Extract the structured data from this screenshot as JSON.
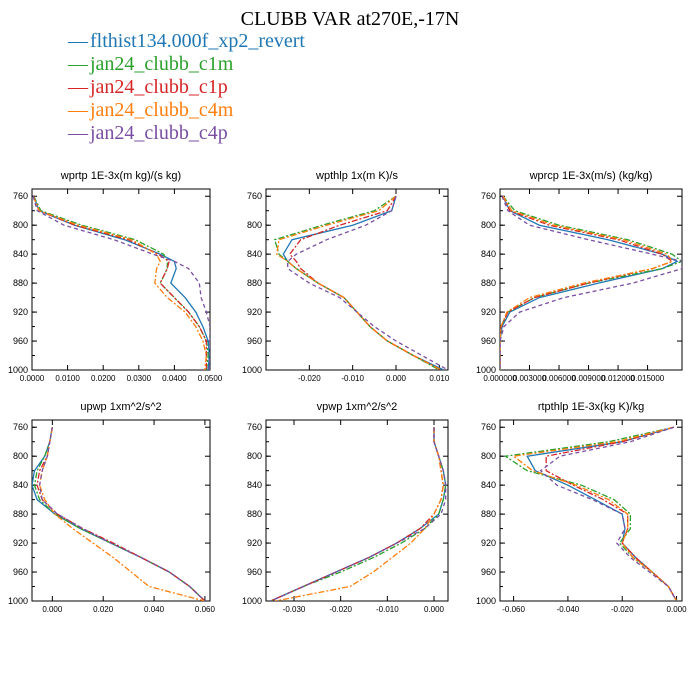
{
  "title": "CLUBB VAR at270E,-17N",
  "legend": [
    {
      "name": "flthist134.000f_xp2_revert",
      "color": "#1f77b4",
      "dash": ""
    },
    {
      "name": "jan24_clubb_c1m",
      "color": "#2ca02c",
      "dash": "6,2,2,2"
    },
    {
      "name": "jan24_clubb_c1p",
      "color": "#d62728",
      "dash": "6,2,2,2"
    },
    {
      "name": "jan24_clubb_c4m",
      "color": "#ff7f0e",
      "dash": "6,2,2,2"
    },
    {
      "name": "jan24_clubb_c4p",
      "color": "#7a4fa3",
      "dash": "4,3"
    }
  ],
  "chart_data": [
    {
      "type": "line",
      "title": "wprtp  1E-3x(m kg)/(s kg)",
      "xlim": [
        0,
        0.05
      ],
      "ylim": [
        1000,
        750
      ],
      "xticks": [
        "0.0000",
        "0.0100",
        "0.0200",
        "0.0300",
        "0.0400",
        "0.0500"
      ],
      "yticks": [
        "760",
        "800",
        "840",
        "880",
        "920",
        "960",
        "1000"
      ],
      "y": [
        760,
        780,
        800,
        820,
        840,
        850,
        860,
        880,
        900,
        920,
        940,
        960,
        980,
        1000
      ],
      "series": [
        {
          "name": "flthist134.000f_xp2_revert",
          "values": [
            0.0005,
            0.002,
            0.012,
            0.026,
            0.036,
            0.04,
            0.0405,
            0.039,
            0.043,
            0.046,
            0.048,
            0.0495,
            0.0498,
            0.0495
          ]
        },
        {
          "name": "jan24_clubb_c1m",
          "values": [
            0.0005,
            0.0025,
            0.014,
            0.029,
            0.037,
            0.038,
            0.038,
            0.036,
            0.04,
            0.044,
            0.047,
            0.049,
            0.0495,
            0.049
          ]
        },
        {
          "name": "jan24_clubb_c1p",
          "values": [
            0.0004,
            0.002,
            0.012,
            0.027,
            0.0355,
            0.0385,
            0.038,
            0.036,
            0.04,
            0.044,
            0.047,
            0.049,
            0.049,
            0.049
          ]
        },
        {
          "name": "jan24_clubb_c4m",
          "values": [
            0.0004,
            0.002,
            0.013,
            0.028,
            0.035,
            0.036,
            0.035,
            0.0345,
            0.038,
            0.043,
            0.046,
            0.048,
            0.049,
            0.0485
          ]
        },
        {
          "name": "jan24_clubb_c4p",
          "values": [
            0.0003,
            0.0015,
            0.009,
            0.023,
            0.034,
            0.04,
            0.044,
            0.047,
            0.0475,
            0.049,
            0.05,
            0.05,
            0.05,
            0.0498
          ]
        }
      ]
    },
    {
      "type": "line",
      "title": "wpthlp  1x(m K)/s",
      "xlim": [
        -0.03,
        0.012
      ],
      "ylim": [
        1000,
        750
      ],
      "xticks": [
        "-0.020",
        "-0.010",
        "0.000",
        "0.010"
      ],
      "yticks": [
        "760",
        "800",
        "840",
        "880",
        "920",
        "960",
        "1000"
      ],
      "y": [
        760,
        780,
        800,
        820,
        840,
        850,
        860,
        880,
        900,
        920,
        940,
        960,
        980,
        1000
      ],
      "series": [
        {
          "name": "flthist134.000f_xp2_revert",
          "values": [
            0,
            -0.001,
            -0.01,
            -0.024,
            -0.026,
            -0.025,
            -0.023,
            -0.018,
            -0.012,
            -0.009,
            -0.006,
            -0.002,
            0.004,
            0.011
          ]
        },
        {
          "name": "jan24_clubb_c1m",
          "values": [
            0,
            -0.005,
            -0.017,
            -0.028,
            -0.027,
            -0.025,
            -0.023,
            -0.018,
            -0.012,
            -0.009,
            -0.006,
            -0.002,
            0.004,
            0.01
          ]
        },
        {
          "name": "jan24_clubb_c1p",
          "values": [
            0,
            -0.002,
            -0.013,
            -0.022,
            -0.0245,
            -0.023,
            -0.022,
            -0.018,
            -0.012,
            -0.009,
            -0.006,
            -0.002,
            0.004,
            0.0105
          ]
        },
        {
          "name": "jan24_clubb_c4m",
          "values": [
            0,
            -0.004,
            -0.016,
            -0.027,
            -0.0275,
            -0.025,
            -0.023,
            -0.018,
            -0.012,
            -0.009,
            -0.006,
            -0.002,
            0.004,
            0.0105
          ]
        },
        {
          "name": "jan24_clubb_c4p",
          "values": [
            0,
            -0.001,
            -0.007,
            -0.016,
            -0.023,
            -0.025,
            -0.025,
            -0.02,
            -0.013,
            -0.009,
            -0.005,
            0,
            0.006,
            0.012
          ]
        }
      ]
    },
    {
      "type": "line",
      "title": "wprcp  1E-3x(m/s) (kg/kg)",
      "xlim": [
        0,
        0.0185
      ],
      "ylim": [
        1000,
        750
      ],
      "xticks": [
        "0.000000",
        "0.003000",
        "0.006000",
        "0.009000",
        "0.012000",
        "0.015000"
      ],
      "yticks": [
        "760",
        "800",
        "840",
        "880",
        "920",
        "960",
        "1000"
      ],
      "y": [
        760,
        780,
        800,
        820,
        840,
        850,
        860,
        880,
        900,
        920,
        940,
        960,
        980,
        1000
      ],
      "series": [
        {
          "name": "flthist134.000f_xp2_revert",
          "values": [
            0.0003,
            0.001,
            0.004,
            0.011,
            0.0165,
            0.018,
            0.0165,
            0.01,
            0.004,
            0.001,
            0.0002,
            0,
            0,
            0
          ]
        },
        {
          "name": "jan24_clubb_c1m",
          "values": [
            0.0003,
            0.0015,
            0.006,
            0.013,
            0.0175,
            0.0185,
            0.0165,
            0.009,
            0.0035,
            0.0008,
            0.0001,
            0,
            0,
            0
          ]
        },
        {
          "name": "jan24_clubb_c1p",
          "values": [
            0.0003,
            0.001,
            0.005,
            0.012,
            0.0165,
            0.0175,
            0.0155,
            0.009,
            0.0035,
            0.0008,
            0.0001,
            0,
            0,
            0
          ]
        },
        {
          "name": "jan24_clubb_c4m",
          "values": [
            0.0003,
            0.0012,
            0.0055,
            0.0125,
            0.017,
            0.0175,
            0.0155,
            0.0085,
            0.003,
            0.0007,
            0.0001,
            0,
            0,
            0
          ]
        },
        {
          "name": "jan24_clubb_c4p",
          "values": [
            0.0002,
            0.0008,
            0.003,
            0.009,
            0.0155,
            0.0185,
            0.0185,
            0.0135,
            0.0065,
            0.002,
            0.0004,
            0,
            0,
            0
          ]
        }
      ]
    },
    {
      "type": "line",
      "title": "upwp   1xm^2/s^2",
      "xlim": [
        -0.008,
        0.062
      ],
      "ylim": [
        1000,
        750
      ],
      "xticks": [
        "0.000",
        "0.020",
        "0.040",
        "0.060"
      ],
      "yticks": [
        "760",
        "800",
        "840",
        "880",
        "920",
        "960",
        "1000"
      ],
      "y": [
        760,
        780,
        800,
        820,
        840,
        860,
        880,
        900,
        920,
        940,
        960,
        980,
        1000
      ],
      "series": [
        {
          "name": "flthist134.000f_xp2_revert",
          "values": [
            0,
            -0.001,
            -0.003,
            -0.007,
            -0.008,
            -0.006,
            0.001,
            0.011,
            0.023,
            0.035,
            0.046,
            0.054,
            0.06
          ]
        },
        {
          "name": "jan24_clubb_c1m",
          "values": [
            0,
            -0.001,
            -0.003,
            -0.006,
            -0.007,
            -0.005,
            0.001,
            0.011,
            0.023,
            0.035,
            0.046,
            0.054,
            0.06
          ]
        },
        {
          "name": "jan24_clubb_c1p",
          "values": [
            0,
            -0.001,
            -0.002,
            -0.005,
            -0.006,
            -0.004,
            0.002,
            0.012,
            0.024,
            0.035,
            0.046,
            0.054,
            0.06
          ]
        },
        {
          "name": "jan24_clubb_c4m",
          "values": [
            0,
            -0.001,
            -0.002,
            -0.004,
            -0.005,
            -0.003,
            0.001,
            0.008,
            0.016,
            0.024,
            0.031,
            0.038,
            0.06
          ]
        },
        {
          "name": "jan24_clubb_c4p",
          "values": [
            0,
            -0.001,
            -0.002,
            -0.004,
            -0.005,
            -0.004,
            0.002,
            0.012,
            0.023,
            0.035,
            0.046,
            0.054,
            0.06
          ]
        }
      ]
    },
    {
      "type": "line",
      "title": "vpwp   1xm^2/s^2",
      "xlim": [
        -0.036,
        0.003
      ],
      "ylim": [
        1000,
        750
      ],
      "xticks": [
        "-0.030",
        "-0.020",
        "-0.010",
        "0.000"
      ],
      "yticks": [
        "760",
        "800",
        "840",
        "880",
        "920",
        "960",
        "1000"
      ],
      "y": [
        760,
        780,
        800,
        820,
        840,
        860,
        880,
        900,
        920,
        940,
        960,
        980,
        1000
      ],
      "series": [
        {
          "name": "flthist134.000f_xp2_revert",
          "values": [
            0,
            0,
            0.001,
            0.002,
            0.0025,
            0.002,
            0.001,
            -0.003,
            -0.008,
            -0.014,
            -0.021,
            -0.028,
            -0.035
          ]
        },
        {
          "name": "jan24_clubb_c1m",
          "values": [
            0,
            0,
            0.001,
            0.002,
            0.0025,
            0.002,
            0.001,
            -0.002,
            -0.007,
            -0.013,
            -0.02,
            -0.028,
            -0.035
          ]
        },
        {
          "name": "jan24_clubb_c1p",
          "values": [
            0,
            0,
            0.001,
            0.0015,
            0.002,
            0.0015,
            0,
            -0.003,
            -0.008,
            -0.014,
            -0.021,
            -0.028,
            -0.035
          ]
        },
        {
          "name": "jan24_clubb_c4m",
          "values": [
            0,
            0,
            0.001,
            0.0015,
            0.002,
            0.0015,
            0,
            -0.002,
            -0.005,
            -0.009,
            -0.013,
            -0.018,
            -0.034
          ]
        },
        {
          "name": "jan24_clubb_c4p",
          "values": [
            0,
            0,
            0.001,
            0.002,
            0.0025,
            0.0025,
            0.0015,
            -0.002,
            -0.008,
            -0.014,
            -0.021,
            -0.028,
            -0.035
          ]
        }
      ]
    },
    {
      "type": "line",
      "title": "rtpthlp  1E-3x(kg K)/kg",
      "xlim": [
        -0.065,
        0.002
      ],
      "ylim": [
        1000,
        750
      ],
      "xticks": [
        "-0.060",
        "-0.040",
        "-0.020",
        "0.000"
      ],
      "yticks": [
        "760",
        "800",
        "840",
        "880",
        "920",
        "960",
        "1000"
      ],
      "y": [
        760,
        780,
        800,
        820,
        840,
        860,
        880,
        900,
        920,
        940,
        960,
        980,
        1000
      ],
      "series": [
        {
          "name": "flthist134.000f_xp2_revert",
          "values": [
            -0.001,
            -0.02,
            -0.055,
            -0.052,
            -0.04,
            -0.03,
            -0.02,
            -0.019,
            -0.02,
            -0.015,
            -0.009,
            -0.003,
            0
          ]
        },
        {
          "name": "jan24_clubb_c1m",
          "values": [
            -0.001,
            -0.025,
            -0.063,
            -0.055,
            -0.035,
            -0.023,
            -0.017,
            -0.017,
            -0.021,
            -0.016,
            -0.009,
            -0.003,
            0
          ]
        },
        {
          "name": "jan24_clubb_c1p",
          "values": [
            -0.001,
            -0.02,
            -0.048,
            -0.048,
            -0.038,
            -0.027,
            -0.018,
            -0.018,
            -0.02,
            -0.015,
            -0.009,
            -0.003,
            0
          ]
        },
        {
          "name": "jan24_clubb_c4m",
          "values": [
            -0.001,
            -0.022,
            -0.06,
            -0.053,
            -0.037,
            -0.025,
            -0.018,
            -0.018,
            -0.02,
            -0.016,
            -0.009,
            -0.003,
            0
          ]
        },
        {
          "name": "jan24_clubb_c4p",
          "values": [
            -0.001,
            -0.017,
            -0.043,
            -0.05,
            -0.044,
            -0.031,
            -0.02,
            -0.019,
            -0.022,
            -0.017,
            -0.01,
            -0.003,
            0
          ]
        }
      ]
    }
  ]
}
